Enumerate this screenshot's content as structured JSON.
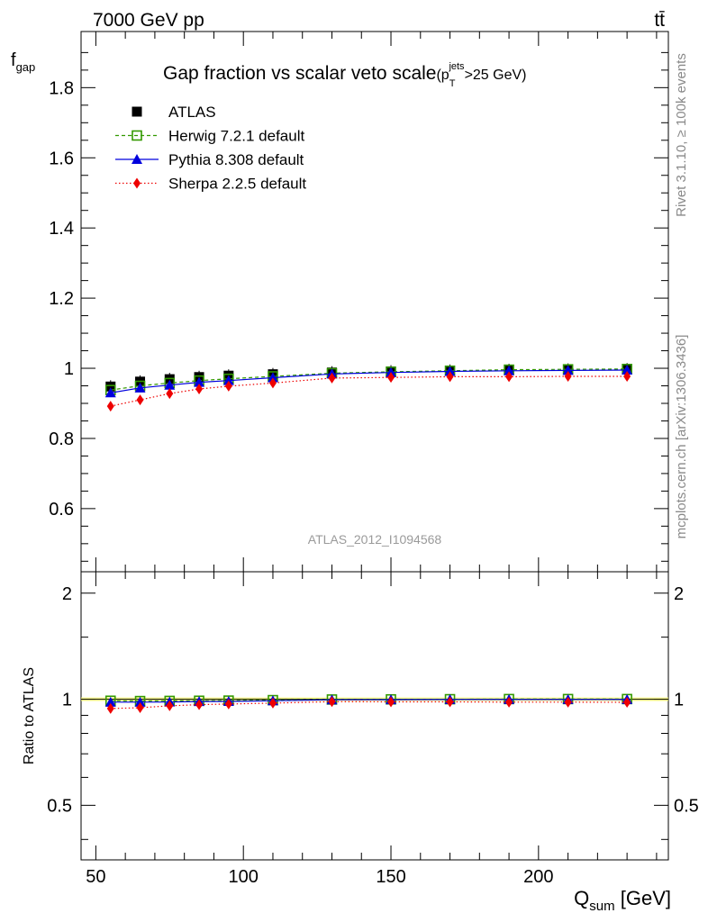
{
  "header": {
    "left": "7000 GeV pp",
    "right": "tt̄"
  },
  "chart_data": [
    {
      "type": "line",
      "title": "Gap fraction vs scalar veto scale",
      "title_cut": {
        "open": "(p",
        "sup": "jets",
        "sub": "T",
        "close": ">25 GeV)"
      },
      "ylabel": {
        "main": "f",
        "sub": "gap"
      },
      "xlim": [
        45,
        244
      ],
      "ylim": [
        0.42,
        1.96
      ],
      "yticks": [
        0.6,
        0.8,
        1,
        1.2,
        1.4,
        1.6,
        1.8
      ],
      "ytick_labels": [
        "0.6",
        "0.8",
        "1",
        "1.2",
        "1.4",
        "1.6",
        "1.8"
      ],
      "x": [
        55,
        65,
        75,
        85,
        95,
        110,
        130,
        150,
        170,
        190,
        210,
        230
      ],
      "series": [
        {
          "name": "ATLAS",
          "color": "#000000",
          "marker": "filled-square",
          "values": [
            0.948,
            0.962,
            0.969,
            0.975,
            0.979,
            0.983,
            0.988,
            0.991,
            0.993,
            0.995,
            0.996,
            0.997
          ]
        },
        {
          "name": "Herwig 7.2.1 default",
          "color": "#339900",
          "marker": "open-square",
          "line": "dashed",
          "values": [
            0.938,
            0.95,
            0.958,
            0.965,
            0.97,
            0.977,
            0.986,
            0.99,
            0.993,
            0.996,
            0.997,
            0.998
          ]
        },
        {
          "name": "Pythia 8.308 default",
          "color": "#0000dd",
          "marker": "triangle",
          "line": "solid",
          "values": [
            0.93,
            0.944,
            0.952,
            0.96,
            0.965,
            0.973,
            0.984,
            0.988,
            0.991,
            0.993,
            0.994,
            0.995
          ]
        },
        {
          "name": "Sherpa 2.2.5 default",
          "color": "#ee0000",
          "marker": "diamond",
          "line": "dotted",
          "values": [
            0.892,
            0.91,
            0.928,
            0.941,
            0.949,
            0.958,
            0.972,
            0.974,
            0.976,
            0.976,
            0.977,
            0.977
          ]
        }
      ],
      "watermark": "ATLAS_2012_I1094568",
      "legend_placement": "top-left"
    },
    {
      "type": "line",
      "ylabel": "Ratio to ATLAS",
      "xlabel": {
        "main": "Q",
        "sub": "sum",
        "unit": " [GeV]"
      },
      "xlim": [
        45,
        244
      ],
      "ylim": [
        0.35,
        2.3
      ],
      "log_y": true,
      "xticks": [
        50,
        100,
        150,
        200
      ],
      "xtick_labels": [
        "50",
        "100",
        "150",
        "200"
      ],
      "yticks": [
        0.5,
        1,
        2
      ],
      "ytick_labels": [
        "0.5",
        "1",
        "2"
      ],
      "x": [
        55,
        65,
        75,
        85,
        95,
        110,
        130,
        150,
        170,
        190,
        210,
        230
      ],
      "series": [
        {
          "name": "Herwig 7.2.1 default",
          "color": "#339900",
          "marker": "open-square",
          "line": "dashed",
          "values": [
            0.99,
            0.988,
            0.989,
            0.99,
            0.991,
            0.994,
            0.998,
            0.999,
            1.0,
            1.001,
            1.001,
            1.001
          ]
        },
        {
          "name": "Pythia 8.308 default",
          "color": "#0000dd",
          "marker": "triangle",
          "line": "solid",
          "values": [
            0.981,
            0.981,
            0.982,
            0.985,
            0.986,
            0.99,
            0.996,
            0.997,
            0.998,
            0.998,
            0.998,
            0.998
          ]
        },
        {
          "name": "Sherpa 2.2.5 default",
          "color": "#ee0000",
          "marker": "diamond",
          "line": "dotted",
          "values": [
            0.941,
            0.946,
            0.958,
            0.965,
            0.969,
            0.975,
            0.984,
            0.983,
            0.983,
            0.981,
            0.981,
            0.98
          ]
        }
      ]
    }
  ],
  "side_text": {
    "top": "Rivet 3.1.10, ≥ 100k events",
    "bottom": "mcplots.cern.ch [arXiv:1306.3436]"
  }
}
